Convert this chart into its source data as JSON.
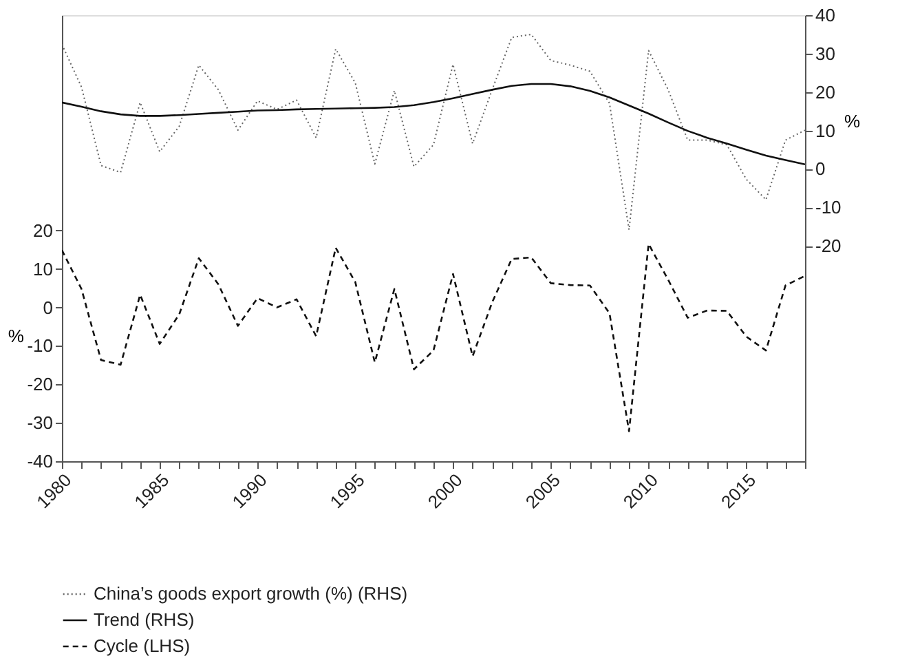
{
  "chart_data": {
    "type": "line",
    "ylabel": "%",
    "y2label": "%",
    "x": [
      1980,
      1981,
      1982,
      1983,
      1984,
      1985,
      1986,
      1987,
      1988,
      1989,
      1990,
      1991,
      1992,
      1993,
      1994,
      1995,
      1996,
      1997,
      1998,
      1999,
      2000,
      2001,
      2002,
      2003,
      2004,
      2005,
      2006,
      2007,
      2008,
      2009,
      2010,
      2011,
      2012,
      2013,
      2014,
      2015,
      2016,
      2017,
      2018
    ],
    "series": [
      {
        "name": "China’s goods export growth (%) (RHS)",
        "color": "#666666",
        "axis": "y2",
        "line_style": "dotted",
        "values": [
          32.4,
          21.3,
          0.9,
          -0.9,
          17.3,
          4.5,
          11.1,
          27.0,
          20.6,
          10.1,
          17.7,
          15.5,
          17.9,
          8.1,
          31.2,
          22.4,
          1.3,
          20.4,
          0.6,
          6.3,
          27.2,
          6.6,
          20.6,
          34.2,
          35.0,
          28.2,
          27.0,
          25.4,
          17.1,
          -15.8,
          30.8,
          20.6,
          7.5,
          7.5,
          6.3,
          -2.7,
          -8.0,
          7.5,
          10.1
        ]
      },
      {
        "name": "Trend (RHS)",
        "color": "#111111",
        "axis": "y2",
        "line_style": "solid",
        "values": [
          17.3,
          16.2,
          15.0,
          14.2,
          13.8,
          13.8,
          14.0,
          14.3,
          14.6,
          14.9,
          15.2,
          15.3,
          15.5,
          15.6,
          15.7,
          15.8,
          15.9,
          16.1,
          16.6,
          17.4,
          18.4,
          19.5,
          20.6,
          21.6,
          22.1,
          22.1,
          21.5,
          20.3,
          18.6,
          16.5,
          14.4,
          12.1,
          9.9,
          8.1,
          6.6,
          5.0,
          3.5,
          2.3,
          1.2
        ]
      },
      {
        "name": "Cycle (LHS)",
        "color": "#111111",
        "axis": "y",
        "line_style": "dashed",
        "values": [
          14.9,
          4.8,
          -13.7,
          -14.9,
          3.3,
          -9.5,
          -1.8,
          12.8,
          6.0,
          -4.8,
          2.4,
          0.0,
          2.1,
          -7.5,
          15.5,
          6.6,
          -14.3,
          4.8,
          -16.1,
          -11.2,
          8.7,
          -12.7,
          1.3,
          12.6,
          13.0,
          6.3,
          5.8,
          5.7,
          -1.5,
          -32.2,
          16.5,
          7.2,
          -2.7,
          -0.8,
          -0.9,
          -7.6,
          -11.2,
          5.7,
          8.2
        ]
      }
    ],
    "xlim": [
      1980,
      2018
    ],
    "xticks": [
      1980,
      {
        "value": 1981,
        "label": null
      },
      {
        "value": 1982,
        "label": null
      },
      {
        "value": 1983,
        "label": null
      },
      {
        "value": 1984,
        "label": null
      },
      1985,
      {
        "value": 1986,
        "label": null
      },
      {
        "value": 1987,
        "label": null
      },
      {
        "value": 1988,
        "label": null
      },
      {
        "value": 1989,
        "label": null
      },
      1990,
      {
        "value": 1991,
        "label": null
      },
      {
        "value": 1992,
        "label": null
      },
      {
        "value": 1993,
        "label": null
      },
      {
        "value": 1994,
        "label": null
      },
      1995,
      {
        "value": 1996,
        "label": null
      },
      {
        "value": 1997,
        "label": null
      },
      {
        "value": 1998,
        "label": null
      },
      {
        "value": 1999,
        "label": null
      },
      2000,
      {
        "value": 2001,
        "label": null
      },
      {
        "value": 2002,
        "label": null
      },
      {
        "value": 2003,
        "label": null
      },
      {
        "value": 2004,
        "label": null
      },
      2005,
      {
        "value": 2006,
        "label": null
      },
      {
        "value": 2007,
        "label": null
      },
      {
        "value": 2008,
        "label": null
      },
      {
        "value": 2009,
        "label": null
      },
      2010,
      {
        "value": 2011,
        "label": null
      },
      {
        "value": 2012,
        "label": null
      },
      {
        "value": 2013,
        "label": null
      },
      {
        "value": 2014,
        "label": null
      },
      2015,
      {
        "value": 2016,
        "label": null
      },
      {
        "value": 2017,
        "label": null
      },
      {
        "value": 2018,
        "label": null
      }
    ],
    "ylim": [
      -40,
      76
    ],
    "yticks": [
      -40,
      -30,
      -20,
      -10,
      0,
      10,
      20
    ],
    "y2lim": [
      -76,
      40
    ],
    "y2ticks": [
      -20,
      -10,
      0,
      10,
      20,
      30,
      40
    ],
    "grid": false,
    "legend": "bottom",
    "marker": "none"
  }
}
